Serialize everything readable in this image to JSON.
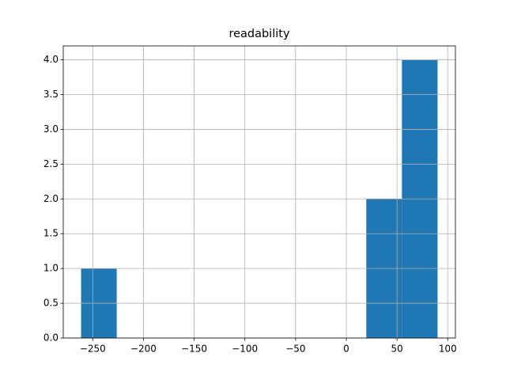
{
  "chart_data": {
    "type": "histogram",
    "title": "readability",
    "bins": [
      -261.5,
      -226.35,
      -191.2,
      -156.05,
      -120.9,
      -85.75,
      -50.6,
      -15.45,
      19.7,
      54.85,
      90.0
    ],
    "values": [
      1,
      0,
      0,
      0,
      0,
      0,
      0,
      0,
      2,
      4
    ],
    "color": "#1f77b4",
    "xlim": [
      -279.075,
      107.575
    ],
    "xticks": [
      {
        "value": -250,
        "label": "−250"
      },
      {
        "value": -200,
        "label": "−200"
      },
      {
        "value": -150,
        "label": "−150"
      },
      {
        "value": -100,
        "label": "−100"
      },
      {
        "value": -50,
        "label": "−50"
      },
      0,
      50,
      100
    ],
    "ylim": [
      0,
      4.2
    ],
    "yticks": [
      {
        "value": 0,
        "label": "0.0"
      },
      {
        "value": 0.5,
        "label": "0.5"
      },
      {
        "value": 1,
        "label": "1.0"
      },
      {
        "value": 1.5,
        "label": "1.5"
      },
      {
        "value": 2,
        "label": "2.0"
      },
      {
        "value": 2.5,
        "label": "2.5"
      },
      {
        "value": 3,
        "label": "3.0"
      },
      {
        "value": 3.5,
        "label": "3.5"
      },
      {
        "value": 4,
        "label": "4.0"
      }
    ],
    "grid": true
  }
}
